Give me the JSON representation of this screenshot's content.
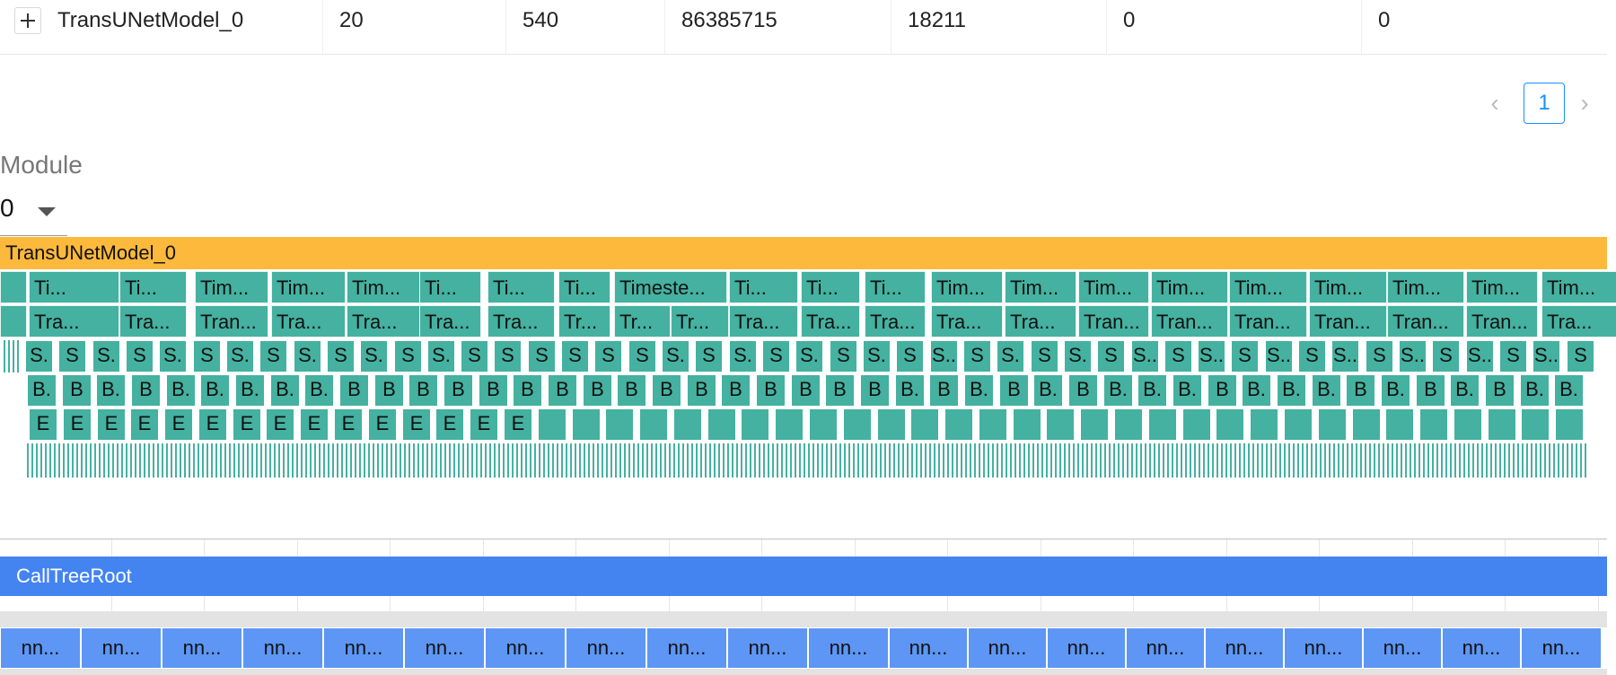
{
  "table": {
    "row": {
      "name": "TransUNetModel_0",
      "values": [
        "20",
        "540",
        "86385715",
        "18211",
        "0",
        "0"
      ]
    }
  },
  "pagination": {
    "current": "1",
    "prev_icon": "chevron-left-icon",
    "next_icon": "chevron-right-icon"
  },
  "module": {
    "label": "Module",
    "value": "0"
  },
  "flame": {
    "root_label": "TransUNetModel_0",
    "level1_labels": [
      "Ti...",
      "Ti...",
      "Tim...",
      "Tim...",
      "Tim...",
      "Ti...",
      "Ti...",
      "Ti...",
      "Timeste...",
      "Ti...",
      "Ti...",
      "Ti...",
      "Tim...",
      "Tim...",
      "Tim...",
      "Tim...",
      "Tim...",
      "Tim...",
      "Tim...",
      "Tim...",
      "Tim..."
    ],
    "level2_labels": [
      "Tra...",
      "Tra...",
      "Tran...",
      "Tra...",
      "Tra...",
      "Tra...",
      "Tra...",
      "Tr...",
      "Tr...",
      "Tr...",
      "Tra...",
      "Tra...",
      "Tra...",
      "Tra...",
      "Tra...",
      "Tran...",
      "Tran...",
      "Tran...",
      "Tran...",
      "Tran...",
      "Tran..."
    ],
    "level3_labels": [
      "S.",
      "S",
      "S.",
      "S",
      "S.",
      "S",
      "S.",
      "S",
      "S.",
      "S",
      "S.",
      "S",
      "S.",
      "S",
      "S",
      "S",
      "S",
      "S",
      "S",
      "S.",
      "S",
      "S.",
      "S",
      "S.",
      "S",
      "S.",
      "S",
      "S..",
      "S",
      "S.",
      "S",
      "S.",
      "S",
      "S..",
      "S",
      "S..",
      "S",
      "S..",
      "S",
      "S..",
      "S",
      "S..",
      "S",
      "S..",
      "S",
      "S..",
      "S"
    ],
    "level4_labels": [
      "B.",
      "B",
      "B.",
      "B",
      "B.",
      "B.",
      "B.",
      "B.",
      "B.",
      "B",
      "B",
      "B",
      "B",
      "B",
      "B",
      "B",
      "B",
      "B",
      "B",
      "B",
      "B",
      "B",
      "B",
      "B",
      "B",
      "B.",
      "B",
      "B.",
      "B",
      "B.",
      "B",
      "B.",
      "B.",
      "B.",
      "B",
      "B.",
      "B.",
      "B.",
      "B",
      "B.",
      "B",
      "B.",
      "B",
      "B.",
      "B."
    ],
    "level5_labels": [
      "E",
      "E",
      "E",
      "E",
      "E",
      "E",
      "E",
      "E",
      "E",
      "E",
      "E",
      "E",
      "E",
      "E",
      "E"
    ]
  },
  "call_tree": {
    "root_label": "CallTreeRoot",
    "child_label": "nn...",
    "child_count": 20
  },
  "colors": {
    "root_orange": "#fcb93b",
    "flame_teal": "#45b1a0",
    "calltree_blue": "#4484f1",
    "calltree_child": "#5d96f5",
    "page_active": "#1890ff"
  }
}
